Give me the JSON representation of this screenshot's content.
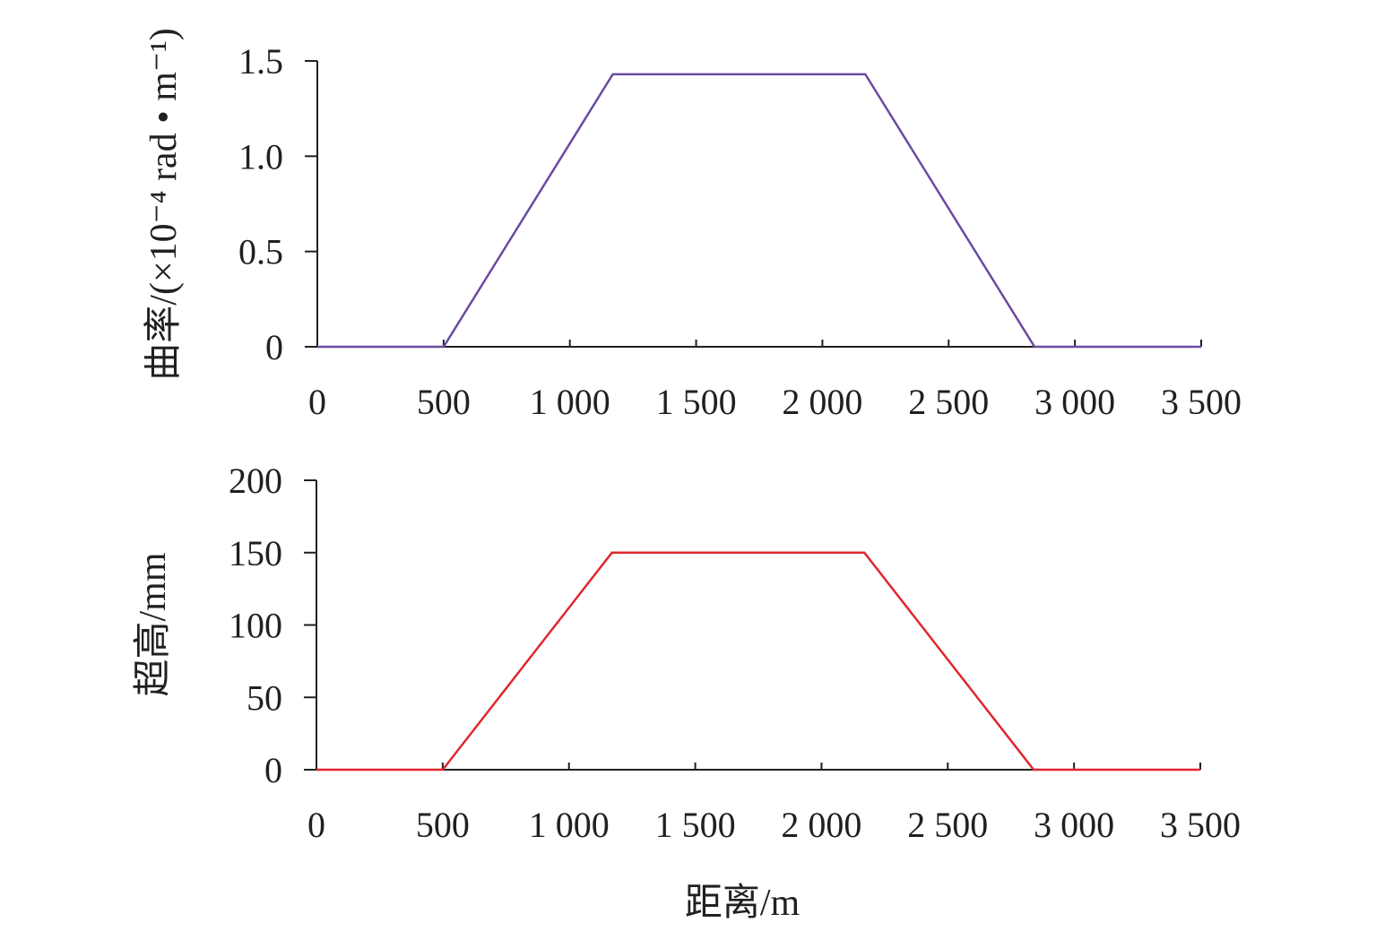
{
  "chart_data": [
    {
      "type": "line",
      "ylabel": "曲率/(×10⁻⁴ rad • m⁻¹)",
      "xlabel": "",
      "xlim": [
        0,
        3500
      ],
      "ylim": [
        0,
        1.5
      ],
      "x_ticks": [
        0,
        500,
        1000,
        1500,
        2000,
        2500,
        3000,
        3500
      ],
      "x_tick_labels": [
        "0",
        "500",
        "1 000",
        "1 500",
        "2 000",
        "2 500",
        "3 000",
        "3 500"
      ],
      "y_ticks": [
        0,
        0.5,
        1.0,
        1.5
      ],
      "y_tick_labels": [
        "0",
        "0.5",
        "1.0",
        "1.5"
      ],
      "grid": false,
      "series": [
        {
          "color": "#6a4ba0",
          "x": [
            0,
            500,
            1170,
            2170,
            2840,
            3500
          ],
          "y": [
            0,
            0,
            1.43,
            1.43,
            0,
            0
          ]
        }
      ]
    },
    {
      "type": "line",
      "ylabel": "超高/mm",
      "xlabel": "距离/m",
      "xlim": [
        0,
        3500
      ],
      "ylim": [
        0,
        200
      ],
      "x_ticks": [
        0,
        500,
        1000,
        1500,
        2000,
        2500,
        3000,
        3500
      ],
      "x_tick_labels": [
        "0",
        "500",
        "1 000",
        "1 500",
        "2 000",
        "2 500",
        "3 000",
        "3 500"
      ],
      "y_ticks": [
        0,
        50,
        100,
        150,
        200
      ],
      "y_tick_labels": [
        "0",
        "50",
        "100",
        "150",
        "200"
      ],
      "grid": false,
      "series": [
        {
          "color": "#e0262d",
          "x": [
            0,
            500,
            1170,
            2170,
            2840,
            3500
          ],
          "y": [
            0,
            0,
            150,
            150,
            0,
            0
          ]
        }
      ]
    }
  ]
}
